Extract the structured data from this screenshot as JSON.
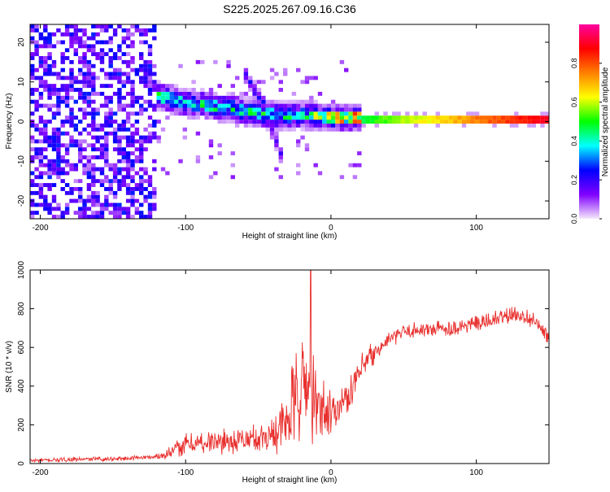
{
  "title": "S225.2025.267.09.16.C36",
  "chart_data": [
    {
      "type": "heatmap",
      "xlabel": "Height of straight line (km)",
      "ylabel": "Frequency (Hz)",
      "xlim": [
        -207,
        150
      ],
      "ylim": [
        -24.5,
        24.5
      ],
      "xticks": [
        -200,
        -100,
        0,
        100
      ],
      "yticks": [
        -20,
        -10,
        0,
        10,
        20
      ],
      "colorbar": {
        "label": "Normalized spectral amplitude",
        "range": [
          0,
          1
        ],
        "ticks": [
          0.0,
          0.2,
          0.4,
          0.6,
          0.8
        ],
        "colors": [
          "#f5e8fb",
          "#8000ff",
          "#0000ff",
          "#00ffff",
          "#00ff00",
          "#ffff00",
          "#ff8000",
          "#ff0000",
          "#ff00a0"
        ]
      },
      "features": {
        "carrier_line": {
          "frequency_hz": 0,
          "x_start": 20,
          "x_end": 150,
          "amplitude": 0.85
        },
        "ridge": {
          "x": [
            -150,
            -140,
            -130,
            -120,
            -110,
            -100,
            -90,
            -80,
            -70,
            -60,
            -50,
            -40,
            -30,
            -20,
            -10,
            0,
            10
          ],
          "freq_hz": [
            12,
            11,
            8,
            6,
            5,
            4,
            4,
            3,
            3,
            2,
            1.5,
            1,
            1,
            1,
            1,
            0.5,
            0.5
          ]
        },
        "branch": {
          "x": [
            -62,
            -55,
            -48,
            -42,
            -35
          ],
          "freq_hz": [
            12,
            8,
            4,
            -2,
            -10
          ]
        }
      }
    },
    {
      "type": "line",
      "xlabel": "Height of straight line (km)",
      "ylabel": "SNR (10 * v/v)",
      "xlim": [
        -207,
        150
      ],
      "ylim": [
        0,
        1000
      ],
      "xticks": [
        -200,
        -100,
        0,
        100
      ],
      "yticks": [
        0,
        200,
        400,
        600,
        800,
        1000
      ],
      "color": "#e8302e",
      "trend": {
        "x": [
          -207,
          -180,
          -150,
          -120,
          -110,
          -100,
          -80,
          -60,
          -40,
          -30,
          -25,
          -20,
          -15,
          -10,
          -5,
          0,
          10,
          20,
          30,
          40,
          50,
          60,
          80,
          100,
          120,
          130,
          140,
          150
        ],
        "y": [
          15,
          20,
          25,
          35,
          60,
          100,
          110,
          120,
          150,
          220,
          330,
          380,
          400,
          280,
          260,
          260,
          330,
          470,
          570,
          640,
          680,
          690,
          700,
          720,
          760,
          770,
          740,
          650
        ]
      },
      "spikes": [
        {
          "x": -27,
          "y": 480
        },
        {
          "x": -19,
          "y": 580
        },
        {
          "x": -14,
          "y": 1000
        }
      ]
    }
  ]
}
